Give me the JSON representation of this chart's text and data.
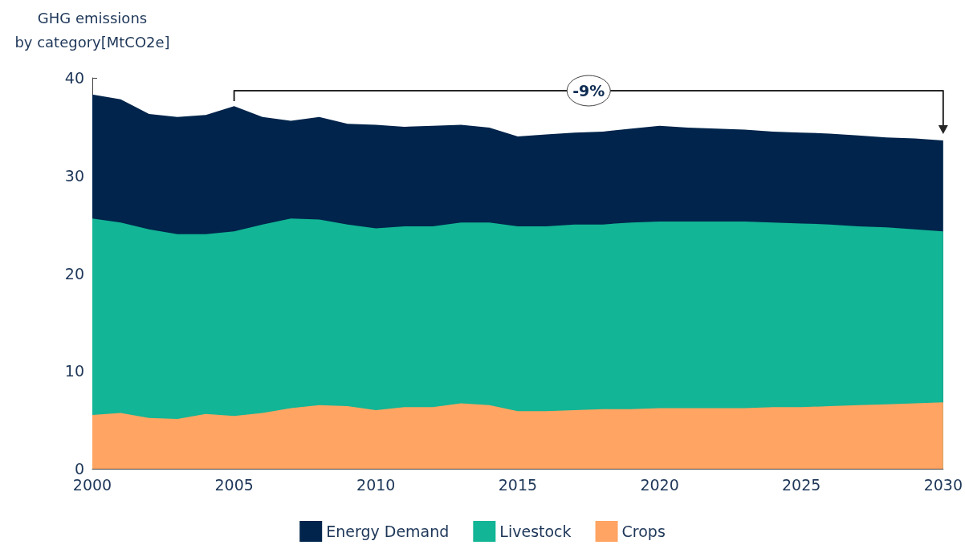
{
  "chart_data": {
    "type": "area",
    "ylabel": "GHG emissions\nby category[MtCO2e]",
    "x": [
      2000,
      2001,
      2002,
      2003,
      2004,
      2005,
      2006,
      2007,
      2008,
      2009,
      2010,
      2011,
      2012,
      2013,
      2014,
      2015,
      2016,
      2017,
      2018,
      2019,
      2020,
      2021,
      2022,
      2023,
      2024,
      2025,
      2026,
      2027,
      2028,
      2029,
      2030
    ],
    "series": [
      {
        "name": "Crops",
        "color": "#ffa462",
        "values": [
          5.5,
          5.7,
          5.2,
          5.1,
          5.6,
          5.4,
          5.7,
          6.2,
          6.5,
          6.4,
          6.0,
          6.3,
          6.3,
          6.7,
          6.5,
          5.9,
          5.9,
          6.0,
          6.1,
          6.1,
          6.2,
          6.2,
          6.2,
          6.2,
          6.3,
          6.3,
          6.4,
          6.5,
          6.6,
          6.7,
          6.8
        ]
      },
      {
        "name": "Livestock",
        "color": "#12b595",
        "values": [
          20.1,
          19.5,
          19.3,
          18.9,
          18.4,
          18.9,
          19.3,
          19.4,
          19.0,
          18.6,
          18.6,
          18.5,
          18.5,
          18.5,
          18.7,
          18.9,
          18.9,
          19.0,
          18.9,
          19.1,
          19.1,
          19.1,
          19.1,
          19.1,
          18.9,
          18.8,
          18.6,
          18.3,
          18.1,
          17.8,
          17.5
        ]
      },
      {
        "name": "Energy Demand",
        "color": "#00244b",
        "values": [
          12.7,
          12.6,
          11.8,
          12.0,
          12.2,
          12.8,
          11.0,
          10.0,
          10.5,
          10.3,
          10.6,
          10.2,
          10.3,
          10.0,
          9.7,
          9.2,
          9.4,
          9.4,
          9.5,
          9.6,
          9.8,
          9.6,
          9.5,
          9.4,
          9.3,
          9.3,
          9.3,
          9.3,
          9.2,
          9.3,
          9.3
        ]
      }
    ],
    "stacked": true,
    "xlim": [
      2000,
      2030
    ],
    "xticks": [
      2000,
      2005,
      2010,
      2015,
      2020,
      2025,
      2030
    ],
    "ylim": [
      0,
      40
    ],
    "yticks": [
      0,
      10,
      20,
      30,
      40
    ],
    "grid": false,
    "legend": "bottom",
    "annotations": [
      "-9%"
    ]
  }
}
